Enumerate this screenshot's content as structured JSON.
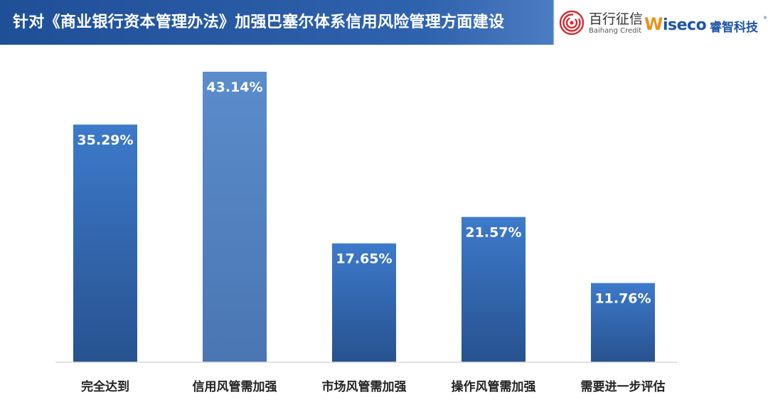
{
  "header": {
    "title": "针对《商业银行资本管理办法》加强巴塞尔体系信用风险管理方面建设"
  },
  "logos": {
    "baihang_cn": "百行征信",
    "baihang_en": "Baihang Credit",
    "wiseco_w": "W",
    "wiseco_rest": "iseco",
    "wiseco_cn": "睿智科技",
    "wiseco_reg": "®"
  },
  "chart_data": {
    "type": "bar",
    "title": "",
    "xlabel": "",
    "ylabel": "",
    "categories": [
      "完全达到",
      "信用风管需加强",
      "市场风管需加强",
      "操作风管需加强",
      "需要进一步评估"
    ],
    "values": [
      35.29,
      43.14,
      17.65,
      21.57,
      11.76
    ],
    "value_labels": [
      "35.29%",
      "43.14%",
      "17.65%",
      "21.57%",
      "11.76%"
    ],
    "ylim": [
      0,
      43.14
    ],
    "grid": false,
    "legend": "none",
    "highlight_index": 1,
    "colors": {
      "bar_top": "#3d7acb",
      "bar_bottom": "#27528f",
      "highlight_top": "#5b8ccb",
      "highlight_bottom": "#4a76b3",
      "baseline": "#d9d9d9"
    }
  }
}
